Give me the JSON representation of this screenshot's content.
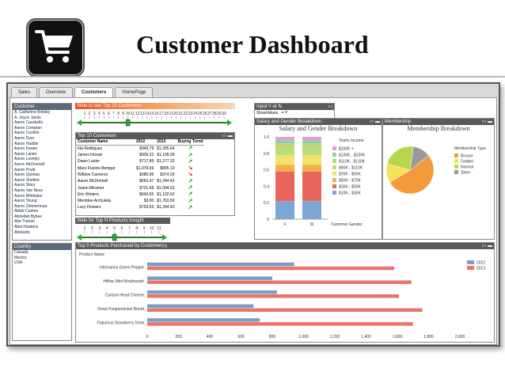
{
  "slide_title": "Customer Dashboard",
  "tabs": [
    "Sales",
    "Overview",
    "Customers",
    "HomePage"
  ],
  "active_tab": 2,
  "customer_list": {
    "header": "Customer",
    "items": [
      "A. Catherine Binkley",
      "A. Joyce Jarvis",
      "Aaron Carabello",
      "Aaron Compton",
      "Aaron Conklin",
      "Aaron Dyer",
      "Aaron Haddix",
      "Aaron Keane",
      "Aaron Lanier",
      "Aaron Lovejoy",
      "Aaron McDonnell",
      "Aaron Pruitt",
      "Aaron Quintan",
      "Aaron Shelton",
      "Aaron Story",
      "Aaron Van Ness",
      "Aaron Whittaker",
      "Aaron Young",
      "Aaron Zimmerman",
      "Abbie Carlton",
      "Abdullah Bybee",
      "Abe Tramel",
      "Abel Hawkins",
      "Abelardo"
    ]
  },
  "country_list": {
    "header": "Country",
    "items": [
      "Canada",
      "Mexico",
      "USA"
    ]
  },
  "slider_top10": {
    "label": "Slide to see Top 10 Customers",
    "value": 10,
    "ticks": [
      "1",
      "2",
      "3",
      "4",
      "5",
      "6",
      "7",
      "8",
      "9",
      "10",
      "11",
      "12",
      "13",
      "14",
      "15",
      "16",
      "17",
      "18",
      "19",
      "20",
      "21",
      "22",
      "23",
      "24",
      "25",
      "26",
      "27",
      "28",
      "29",
      "30"
    ]
  },
  "top10": {
    "header": "Top 10 Customers",
    "columns": [
      "Customer Name",
      "2012",
      "2013",
      "Buying Trend"
    ],
    "rows": [
      {
        "name": "Ida Rodriguez",
        "y2012": "$949.79",
        "y2013": "$1,285.64",
        "trend": "up"
      },
      {
        "name": "James Horvat",
        "y2012": "$926.22",
        "y2013": "$1,195.09",
        "trend": "up"
      },
      {
        "name": "Dawn Lanier",
        "y2012": "$717.89",
        "y2013": "$1,277.32",
        "trend": "up"
      },
      {
        "name": "Mary Francis Benigar",
        "y2012": "$1,078.69",
        "y2013": "$895.10",
        "trend": "down"
      },
      {
        "name": "Willdon Cameron",
        "y2012": "$980.96",
        "y2013": "$974.29",
        "trend": "down"
      },
      {
        "name": "Aaron McDonnell",
        "y2012": "$663.47",
        "y2013": "$1,244.43",
        "trend": "up"
      },
      {
        "name": "Joann Miramor",
        "y2012": "$731.68",
        "y2013": "$1,094.63",
        "trend": "up"
      },
      {
        "name": "Eric Winters",
        "y2012": "$643.65",
        "y2013": "$1,132.62",
        "trend": "up"
      },
      {
        "name": "Merridee Archuleta",
        "y2012": "$3.00",
        "y2013": "$1,763.59",
        "trend": "up"
      },
      {
        "name": "Lucy Flowers",
        "y2012": "$703.53",
        "y2013": "$1,244.43",
        "trend": "up"
      }
    ]
  },
  "slider_topn": {
    "label": "Slide for Top N Products bought",
    "value": 5,
    "ticks": [
      "1",
      "2",
      "3",
      "4",
      "5",
      "6",
      "7",
      "8",
      "9",
      "10",
      "11"
    ]
  },
  "input_panel": {
    "header": "Input Y or N",
    "label": "ShowValues",
    "value": "= Y"
  },
  "salary_chart": {
    "header": "Salary and Gender Breakdown",
    "legend_title": "Yearly Income",
    "legend_note": "Customer Gender",
    "colors": {
      "$150K +": "#e89bd0",
      "$130K - $150K": "#8fd3a0",
      "$110K - $130K": "#c2d47a",
      "$90K - $110K": "#b7e07a",
      "$70K - $90K": "#f2e26d",
      "$50K - $70K": "#f2b04a",
      "$30K - $50K": "#e8665b",
      "$10K - $30K": "#7da6d6"
    }
  },
  "membership_chart": {
    "header": "Membership",
    "title": "Membership Breakdown",
    "legend_title": "Membership Type"
  },
  "products_chart": {
    "header": "Top 5 Products Purchased by Customer(s)",
    "product_col": "Product Name",
    "colors": {
      "2012": "#7f9cc4",
      "2013": "#e8746a"
    }
  },
  "chart_data": [
    {
      "type": "bar",
      "title": "Salary and Gender Breakdown",
      "stacked": true,
      "categories": [
        "F",
        "M"
      ],
      "ylim": [
        0,
        1.0
      ],
      "yticks": [
        "0",
        "0.2",
        "0.4",
        "0.6",
        "0.8",
        "1.0"
      ],
      "series": [
        {
          "name": "$10K - $30K",
          "values": [
            0.22,
            0.22
          ]
        },
        {
          "name": "$30K - $50K",
          "values": [
            0.36,
            0.36
          ]
        },
        {
          "name": "$50K - $70K",
          "values": [
            0.08,
            0.08
          ]
        },
        {
          "name": "$70K - $90K",
          "values": [
            0.12,
            0.12
          ]
        },
        {
          "name": "$90K - $110K",
          "values": [
            0.08,
            0.08
          ]
        },
        {
          "name": "$110K - $130K",
          "values": [
            0.06,
            0.06
          ]
        },
        {
          "name": "$130K - $150K",
          "values": [
            0.04,
            0.04
          ]
        },
        {
          "name": "$150K +",
          "values": [
            0.04,
            0.04
          ]
        }
      ]
    },
    {
      "type": "pie",
      "title": "Membership Breakdown",
      "labels": [
        "Bronze",
        "Golden",
        "Normal",
        "Silver"
      ],
      "values": [
        52,
        13,
        23,
        12
      ],
      "colors": [
        "#f39a3c",
        "#f5e05a",
        "#b6d64c",
        "#9a9a9a"
      ]
    },
    {
      "type": "bar",
      "orientation": "horizontal",
      "title": "Top 5 Products Purchased by Customer(s)",
      "categories": [
        "Hermanos Green Pepper",
        "Hilltop Mint Mouthwash",
        "Carlson Head Cheese",
        "Great Pumpernickel Bread",
        "Fabulous Strawberry Drink"
      ],
      "xlim": [
        0,
        2000
      ],
      "xticks": [
        "0",
        "200",
        "400",
        "600",
        "800",
        "1,000",
        "1,200",
        "1,400",
        "1,600",
        "1,800",
        "2,000"
      ],
      "series": [
        {
          "name": "2012",
          "values": [
            940,
            800,
            830,
            680,
            720
          ]
        },
        {
          "name": "2013",
          "values": [
            1580,
            1690,
            1610,
            1760,
            1700
          ]
        }
      ]
    }
  ]
}
